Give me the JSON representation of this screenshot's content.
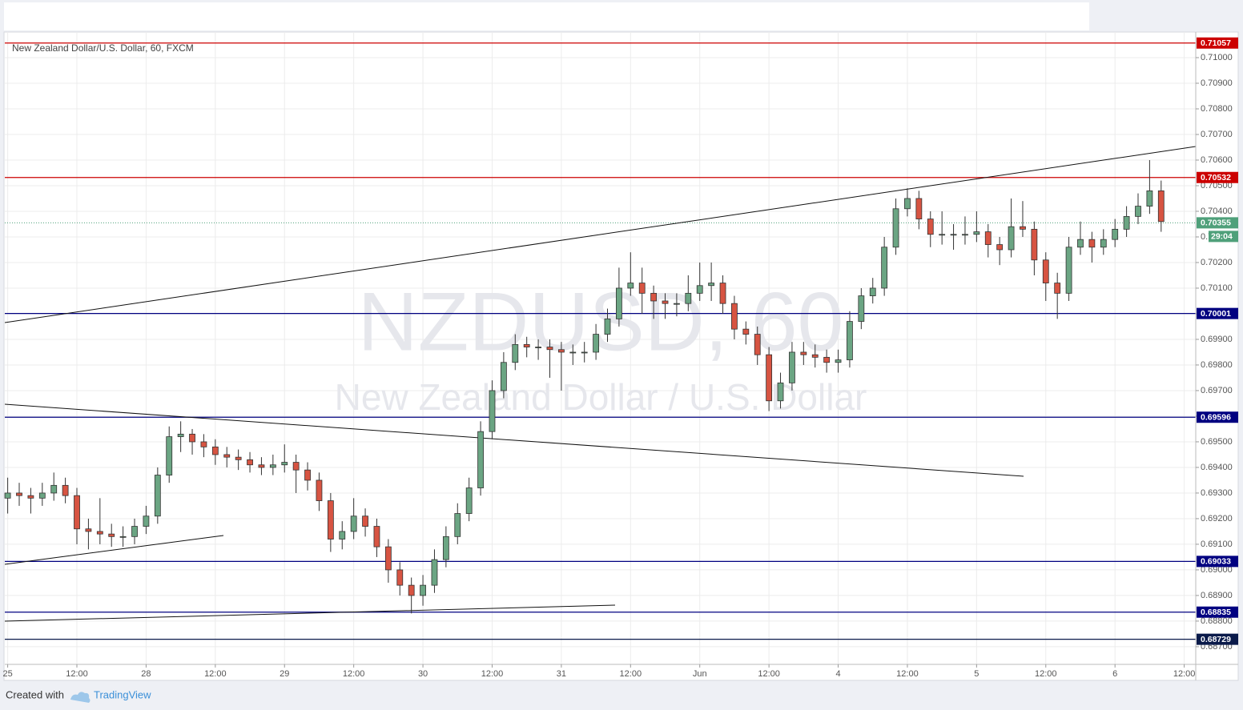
{
  "chart_data": {
    "type": "candlestick",
    "title": "New Zealand Dollar/U.S. Dollar, 60, FXCM",
    "watermark": "NZDUSD, 60",
    "watermark_subtitle": "New Zealand Dollar / U.S. Dollar",
    "footer": {
      "created": "Created with",
      "brand": "TradingView"
    },
    "up_color": "#6ba583",
    "down_color": "#d75442",
    "grid": true,
    "xlim": [
      -0.5,
      206
    ],
    "ylim": [
      0.68631,
      0.711
    ],
    "xticks": [
      {
        "value": 0,
        "label": "25"
      },
      {
        "value": 12,
        "label": "12:00"
      },
      {
        "value": 24,
        "label": "28"
      },
      {
        "value": 36,
        "label": "12:00"
      },
      {
        "value": 48,
        "label": "29"
      },
      {
        "value": 60,
        "label": "12:00"
      },
      {
        "value": 72,
        "label": "30"
      },
      {
        "value": 84,
        "label": "12:00"
      },
      {
        "value": 96,
        "label": "31"
      },
      {
        "value": 108,
        "label": "12:00"
      },
      {
        "value": 120,
        "label": "Jun"
      },
      {
        "value": 132,
        "label": "12:00"
      },
      {
        "value": 144,
        "label": "4"
      },
      {
        "value": 156,
        "label": "12:00"
      },
      {
        "value": 168,
        "label": "5"
      },
      {
        "value": 180,
        "label": "12:00"
      },
      {
        "value": 192,
        "label": "6"
      },
      {
        "value": 204,
        "label": "12:00"
      }
    ],
    "yticks": [
      {
        "value": 0.687,
        "label": "0.68700"
      },
      {
        "value": 0.688,
        "label": "0.68800"
      },
      {
        "value": 0.689,
        "label": "0.68900"
      },
      {
        "value": 0.69,
        "label": "0.69000"
      },
      {
        "value": 0.691,
        "label": "0.69100"
      },
      {
        "value": 0.692,
        "label": "0.69200"
      },
      {
        "value": 0.693,
        "label": "0.69300"
      },
      {
        "value": 0.694,
        "label": "0.69400"
      },
      {
        "value": 0.695,
        "label": "0.69500"
      },
      {
        "value": 0.696,
        "label": "0.69600"
      },
      {
        "value": 0.697,
        "label": "0.69700"
      },
      {
        "value": 0.698,
        "label": "0.69800"
      },
      {
        "value": 0.699,
        "label": "0.69900"
      },
      {
        "value": 0.7,
        "label": "0.70000"
      },
      {
        "value": 0.701,
        "label": "0.70100"
      },
      {
        "value": 0.702,
        "label": "0.70200"
      },
      {
        "value": 0.703,
        "label": "0.70300"
      },
      {
        "value": 0.704,
        "label": "0.70400"
      },
      {
        "value": 0.705,
        "label": "0.70500"
      },
      {
        "value": 0.706,
        "label": "0.70600"
      },
      {
        "value": 0.707,
        "label": "0.70700"
      },
      {
        "value": 0.708,
        "label": "0.70800"
      },
      {
        "value": 0.709,
        "label": "0.70900"
      },
      {
        "value": 0.71,
        "label": "0.71000"
      }
    ],
    "levels": [
      {
        "value": 0.71057,
        "color": "#cc0000"
      },
      {
        "value": 0.70532,
        "color": "#cc0000"
      },
      {
        "value": 0.70001,
        "color": "#000080"
      },
      {
        "value": 0.69596,
        "color": "#000080"
      },
      {
        "value": 0.69033,
        "color": "#000080"
      },
      {
        "value": 0.68835,
        "color": "#000080"
      },
      {
        "value": 0.68729,
        "color": "#0a1a4a"
      }
    ],
    "current_price": {
      "value": 0.70355,
      "countdown": "29:04",
      "color": "#4fa07a"
    },
    "x": [
      0,
      2,
      4,
      6,
      8,
      10,
      12,
      14,
      16,
      18,
      20,
      22,
      24,
      26,
      28,
      30,
      32,
      34,
      36,
      38,
      40,
      42,
      44,
      46,
      48,
      50,
      52,
      54,
      56,
      58,
      60,
      62,
      64,
      66,
      68,
      70,
      72,
      74,
      76,
      78,
      80,
      82,
      84,
      86,
      88,
      90,
      92,
      94,
      96,
      98,
      100,
      102,
      104,
      106,
      108,
      110,
      112,
      114,
      116,
      118,
      120,
      122,
      124,
      126,
      128,
      130,
      132,
      134,
      136,
      138,
      140,
      142,
      144,
      146,
      148,
      150,
      152,
      154,
      156,
      158,
      160,
      162,
      164,
      166,
      168,
      170,
      172,
      174,
      176,
      178,
      180,
      182,
      184,
      186,
      188,
      190,
      192,
      194,
      196,
      198,
      200
    ],
    "candles": [
      [
        0.6928,
        0.6936,
        0.6922,
        0.693
      ],
      [
        0.693,
        0.6934,
        0.6925,
        0.6929
      ],
      [
        0.6929,
        0.6932,
        0.6922,
        0.6928
      ],
      [
        0.6928,
        0.6934,
        0.6925,
        0.693
      ],
      [
        0.693,
        0.6938,
        0.6927,
        0.6933
      ],
      [
        0.6933,
        0.6936,
        0.6926,
        0.6929
      ],
      [
        0.6929,
        0.6932,
        0.691,
        0.6916
      ],
      [
        0.6916,
        0.692,
        0.6908,
        0.6915
      ],
      [
        0.6915,
        0.6928,
        0.691,
        0.6914
      ],
      [
        0.6914,
        0.6918,
        0.6909,
        0.6913
      ],
      [
        0.6913,
        0.6917,
        0.6909,
        0.6913
      ],
      [
        0.6913,
        0.692,
        0.691,
        0.6917
      ],
      [
        0.6917,
        0.6925,
        0.6914,
        0.6921
      ],
      [
        0.6921,
        0.694,
        0.6918,
        0.6937
      ],
      [
        0.6937,
        0.6956,
        0.6934,
        0.6952
      ],
      [
        0.6952,
        0.6958,
        0.6946,
        0.6953
      ],
      [
        0.6953,
        0.6955,
        0.6945,
        0.695
      ],
      [
        0.695,
        0.6953,
        0.6944,
        0.6948
      ],
      [
        0.6948,
        0.6951,
        0.6941,
        0.6945
      ],
      [
        0.6945,
        0.6948,
        0.694,
        0.6944
      ],
      [
        0.6944,
        0.6947,
        0.6939,
        0.6943
      ],
      [
        0.6943,
        0.6946,
        0.6938,
        0.6941
      ],
      [
        0.6941,
        0.6944,
        0.6937,
        0.694
      ],
      [
        0.694,
        0.6945,
        0.6937,
        0.6941
      ],
      [
        0.6941,
        0.6949,
        0.6938,
        0.6942
      ],
      [
        0.6942,
        0.6945,
        0.693,
        0.6939
      ],
      [
        0.6939,
        0.6942,
        0.6931,
        0.6935
      ],
      [
        0.6935,
        0.6938,
        0.6923,
        0.6927
      ],
      [
        0.6927,
        0.693,
        0.6907,
        0.6912
      ],
      [
        0.6912,
        0.6919,
        0.6908,
        0.6915
      ],
      [
        0.6915,
        0.6928,
        0.6912,
        0.6921
      ],
      [
        0.6921,
        0.6924,
        0.6913,
        0.6917
      ],
      [
        0.6917,
        0.692,
        0.6905,
        0.6909
      ],
      [
        0.6909,
        0.6912,
        0.6895,
        0.69
      ],
      [
        0.69,
        0.6903,
        0.689,
        0.6894
      ],
      [
        0.6894,
        0.6897,
        0.6883,
        0.689
      ],
      [
        0.689,
        0.6898,
        0.6886,
        0.6894
      ],
      [
        0.6894,
        0.6908,
        0.6891,
        0.6904
      ],
      [
        0.6904,
        0.6917,
        0.6901,
        0.6913
      ],
      [
        0.6913,
        0.6926,
        0.691,
        0.6922
      ],
      [
        0.6922,
        0.6936,
        0.6919,
        0.6932
      ],
      [
        0.6932,
        0.6958,
        0.6929,
        0.6954
      ],
      [
        0.6954,
        0.6974,
        0.6951,
        0.697
      ],
      [
        0.697,
        0.6985,
        0.6967,
        0.6981
      ],
      [
        0.6981,
        0.6992,
        0.6978,
        0.6988
      ],
      [
        0.6988,
        0.6991,
        0.6983,
        0.6987
      ],
      [
        0.6987,
        0.699,
        0.6982,
        0.6987
      ],
      [
        0.6987,
        0.699,
        0.6975,
        0.6986
      ],
      [
        0.6986,
        0.6989,
        0.697,
        0.6985
      ],
      [
        0.6985,
        0.6988,
        0.698,
        0.6985
      ],
      [
        0.6985,
        0.6989,
        0.6981,
        0.6985
      ],
      [
        0.6985,
        0.6996,
        0.6982,
        0.6992
      ],
      [
        0.6992,
        0.7002,
        0.6989,
        0.6998
      ],
      [
        0.6998,
        0.7018,
        0.6995,
        0.701
      ],
      [
        0.701,
        0.7024,
        0.7007,
        0.7012
      ],
      [
        0.7012,
        0.7018,
        0.7,
        0.7008
      ],
      [
        0.7008,
        0.7011,
        0.6998,
        0.7005
      ],
      [
        0.7005,
        0.7008,
        0.6998,
        0.7004
      ],
      [
        0.7004,
        0.7008,
        0.6999,
        0.7004
      ],
      [
        0.7004,
        0.7015,
        0.7001,
        0.7008
      ],
      [
        0.7008,
        0.702,
        0.7005,
        0.7011
      ],
      [
        0.7011,
        0.702,
        0.7005,
        0.7012
      ],
      [
        0.7012,
        0.7015,
        0.7,
        0.7004
      ],
      [
        0.7004,
        0.7007,
        0.699,
        0.6994
      ],
      [
        0.6994,
        0.6997,
        0.6988,
        0.6992
      ],
      [
        0.6992,
        0.6995,
        0.698,
        0.6984
      ],
      [
        0.6984,
        0.6987,
        0.6962,
        0.6966
      ],
      [
        0.6966,
        0.6977,
        0.6963,
        0.6973
      ],
      [
        0.6973,
        0.6989,
        0.697,
        0.6985
      ],
      [
        0.6985,
        0.6989,
        0.698,
        0.6984
      ],
      [
        0.6984,
        0.6988,
        0.6979,
        0.6983
      ],
      [
        0.6983,
        0.6986,
        0.6977,
        0.6981
      ],
      [
        0.6981,
        0.6986,
        0.6977,
        0.6982
      ],
      [
        0.6982,
        0.7001,
        0.6979,
        0.6997
      ],
      [
        0.6997,
        0.701,
        0.6994,
        0.7007
      ],
      [
        0.7007,
        0.7014,
        0.7004,
        0.701
      ],
      [
        0.701,
        0.703,
        0.7007,
        0.7026
      ],
      [
        0.7026,
        0.7045,
        0.7023,
        0.7041
      ],
      [
        0.7041,
        0.7049,
        0.7038,
        0.7045
      ],
      [
        0.7045,
        0.7048,
        0.7033,
        0.7037
      ],
      [
        0.7037,
        0.704,
        0.7026,
        0.7031
      ],
      [
        0.7031,
        0.704,
        0.7027,
        0.7031
      ],
      [
        0.7031,
        0.7035,
        0.7025,
        0.7031
      ],
      [
        0.7031,
        0.7038,
        0.7027,
        0.7031
      ],
      [
        0.7031,
        0.704,
        0.7028,
        0.7032
      ],
      [
        0.7032,
        0.7035,
        0.7022,
        0.7027
      ],
      [
        0.7027,
        0.703,
        0.7019,
        0.7025
      ],
      [
        0.7025,
        0.7045,
        0.7022,
        0.7034
      ],
      [
        0.7034,
        0.7044,
        0.703,
        0.7033
      ],
      [
        0.7033,
        0.7036,
        0.7015,
        0.7021
      ],
      [
        0.7021,
        0.7024,
        0.7005,
        0.7012
      ],
      [
        0.7012,
        0.7016,
        0.6998,
        0.7008
      ],
      [
        0.7008,
        0.703,
        0.7005,
        0.7026
      ],
      [
        0.7026,
        0.7036,
        0.7023,
        0.7029
      ],
      [
        0.7029,
        0.7032,
        0.702,
        0.7026
      ],
      [
        0.7026,
        0.7033,
        0.7023,
        0.7029
      ],
      [
        0.7029,
        0.7037,
        0.7026,
        0.7033
      ],
      [
        0.7033,
        0.7042,
        0.703,
        0.7038
      ],
      [
        0.7038,
        0.7047,
        0.7035,
        0.7042
      ],
      [
        0.7042,
        0.706,
        0.7039,
        0.7048
      ],
      [
        0.7048,
        0.7052,
        0.7032,
        0.7036
      ]
    ]
  }
}
